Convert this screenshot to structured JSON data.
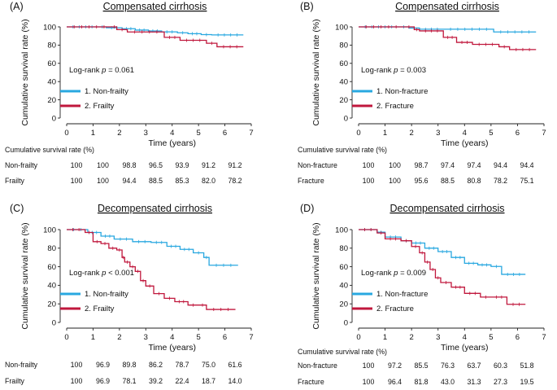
{
  "colors": {
    "blue": "#29a8e0",
    "red": "#c0173c"
  },
  "chart_data": [
    {
      "type": "line",
      "letter": "(A)",
      "title": "Compensated cirrhosis",
      "ylabel": "Cumulative survival rate (%)",
      "xlabel": "Time (years)",
      "xlim": [
        0,
        7
      ],
      "ylim": [
        0,
        100
      ],
      "xticks": [
        "0",
        "1",
        "2",
        "3",
        "4",
        "5",
        "6",
        "7"
      ],
      "yticks": [
        "0",
        "20",
        "40",
        "60",
        "80",
        "100"
      ],
      "logrank_prefix": "Log-rank ",
      "logrank_p": "p",
      "logrank_value": " = 0.061",
      "legend": [
        "1. Non-frailty",
        "2. Frailty"
      ],
      "series": [
        {
          "name": "1. Non-frailty",
          "color": "#29a8e0",
          "x": [
            0,
            1.2,
            1.5,
            2.1,
            2.6,
            3.1,
            3.6,
            4.2,
            4.6,
            5.1,
            5.5,
            6.7
          ],
          "y": [
            100,
            100,
            99,
            98,
            96.5,
            95.5,
            94.5,
            93.5,
            92.5,
            91.5,
            91.2,
            91.2
          ]
        },
        {
          "name": "2. Frailty",
          "color": "#c0173c",
          "x": [
            0,
            1.7,
            1.9,
            2.3,
            3.7,
            4.3,
            5.3,
            5.7,
            6.7
          ],
          "y": [
            100,
            100,
            97,
            94.4,
            88.5,
            85.3,
            82,
            78.2,
            78.2
          ]
        }
      ],
      "table": {
        "header": "Cumulative survival rate (%)",
        "rows": [
          {
            "label": "Non-frailty",
            "values": [
              "100",
              "100",
              "98.8",
              "96.5",
              "93.9",
              "91.2",
              "91.2"
            ]
          },
          {
            "label": "Frailty",
            "values": [
              "100",
              "100",
              "94.4",
              "88.5",
              "85.3",
              "82.0",
              "78.2"
            ]
          }
        ]
      }
    },
    {
      "type": "line",
      "letter": "(B)",
      "title": "Compensated cirrhosis",
      "ylabel": "Cumulative survival rate (%)",
      "xlabel": "Time (years)",
      "xlim": [
        0,
        7
      ],
      "ylim": [
        0,
        100
      ],
      "xticks": [
        "0",
        "1",
        "2",
        "3",
        "4",
        "5",
        "6",
        "7"
      ],
      "yticks": [
        "0",
        "20",
        "40",
        "60",
        "80",
        "100"
      ],
      "logrank_prefix": "Log-rank ",
      "logrank_p": "p",
      "logrank_value": " = 0.003",
      "legend": [
        "1. Non-fracture",
        "2. Fracture"
      ],
      "series": [
        {
          "name": "1. Non-fracture",
          "color": "#29a8e0",
          "x": [
            0,
            1.5,
            1.9,
            2.3,
            3.2,
            5.1,
            6.7
          ],
          "y": [
            100,
            100,
            98.7,
            97.4,
            97.4,
            94.4,
            94.4
          ]
        },
        {
          "name": "2. Fracture",
          "color": "#c0173c",
          "x": [
            0,
            1.7,
            2.1,
            2.3,
            3.2,
            3.7,
            4.3,
            5.3,
            5.7,
            6.7
          ],
          "y": [
            100,
            100,
            97,
            95.6,
            88.5,
            83,
            80.8,
            78.2,
            75.1,
            75.1
          ]
        }
      ],
      "table": {
        "header": "Cumulative survival rate (%)",
        "rows": [
          {
            "label": "Non-fracture",
            "values": [
              "100",
              "100",
              "98.7",
              "97.4",
              "97.4",
              "94.4",
              "94.4"
            ]
          },
          {
            "label": "Fracture",
            "values": [
              "100",
              "100",
              "95.6",
              "88.5",
              "80.8",
              "78.2",
              "75.1"
            ]
          }
        ]
      }
    },
    {
      "type": "line",
      "letter": "(C)",
      "title": "Decompensated cirrhosis",
      "ylabel": "Cumulative survival rate (%)",
      "xlabel": "Time (years)",
      "xlim": [
        0,
        7
      ],
      "ylim": [
        0,
        100
      ],
      "xticks": [
        "0",
        "1",
        "2",
        "3",
        "4",
        "5",
        "6",
        "7"
      ],
      "yticks": [
        "0",
        "20",
        "40",
        "60",
        "80",
        "100"
      ],
      "logrank_prefix": "Log-rank ",
      "logrank_p": "p",
      "logrank_value": " < 0.001",
      "legend": [
        "1. Non-frailty",
        "2. Frailty"
      ],
      "series": [
        {
          "name": "1. Non-frailty",
          "color": "#29a8e0",
          "x": [
            0,
            0.8,
            1.3,
            1.8,
            2.5,
            3.2,
            3.8,
            4.3,
            4.8,
            5.2,
            5.4,
            6.5
          ],
          "y": [
            100,
            96.9,
            93,
            89.8,
            87,
            86.2,
            82,
            78.7,
            75,
            70,
            61.6,
            61.6
          ]
        },
        {
          "name": "2. Frailty",
          "color": "#c0173c",
          "x": [
            0,
            0.7,
            1.0,
            1.3,
            1.6,
            1.9,
            2.1,
            2.2,
            2.4,
            2.6,
            2.8,
            3.0,
            3.3,
            3.7,
            4.1,
            4.6,
            5.0,
            5.3,
            6.4
          ],
          "y": [
            100,
            96.9,
            87,
            85,
            80,
            78.1,
            70,
            65,
            60,
            55,
            45,
            39.2,
            31,
            26,
            22.4,
            18.7,
            18.7,
            14,
            14
          ]
        }
      ],
      "table": {
        "header": "",
        "rows": [
          {
            "label": "Non-frailty",
            "values": [
              "100",
              "96.9",
              "89.8",
              "86.2",
              "78.7",
              "75.0",
              "61.6"
            ]
          },
          {
            "label": "Frailty",
            "values": [
              "100",
              "96.9",
              "78.1",
              "39.2",
              "22.4",
              "18.7",
              "14.0"
            ]
          }
        ]
      }
    },
    {
      "type": "line",
      "letter": "(D)",
      "title": "Decompensated cirrhosis",
      "ylabel": "Cumulative survival rate (%)",
      "xlabel": "Time (years)",
      "xlim": [
        0,
        7
      ],
      "ylim": [
        0,
        100
      ],
      "xticks": [
        "0",
        "1",
        "2",
        "3",
        "4",
        "5",
        "6",
        "7"
      ],
      "yticks": [
        "0",
        "20",
        "40",
        "60",
        "80",
        "100"
      ],
      "logrank_prefix": "Log-rank ",
      "logrank_p": "p",
      "logrank_value": " = 0.009",
      "legend": [
        "1. Non-fracture",
        "2. Fracture"
      ],
      "series": [
        {
          "name": "1. Non-fracture",
          "color": "#29a8e0",
          "x": [
            0,
            0.7,
            1.0,
            1.6,
            2.0,
            2.5,
            3.0,
            3.5,
            4.0,
            4.5,
            5.0,
            5.4,
            6.3
          ],
          "y": [
            100,
            97.2,
            92,
            88,
            85.5,
            80,
            76.3,
            70,
            63.7,
            62,
            60.3,
            51.8,
            51.8
          ]
        },
        {
          "name": "2. Fracture",
          "color": "#c0173c",
          "x": [
            0,
            0.7,
            1.0,
            1.6,
            2.0,
            2.3,
            2.5,
            2.7,
            2.9,
            3.1,
            3.5,
            4.0,
            4.6,
            5.0,
            5.6,
            6.3
          ],
          "y": [
            100,
            96.4,
            90,
            88,
            81.8,
            75,
            65,
            57,
            48,
            43,
            38,
            31.3,
            27.3,
            27.3,
            19.5,
            19.5
          ]
        }
      ],
      "table": {
        "header": "Cumulative survival rate (%)",
        "rows": [
          {
            "label": "Non-fracture",
            "values": [
              "100",
              "97.2",
              "85.5",
              "76.3",
              "63.7",
              "60.3",
              "51.8"
            ]
          },
          {
            "label": "Fracture",
            "values": [
              "100",
              "96.4",
              "81.8",
              "43.0",
              "31.3",
              "27.3",
              "19.5"
            ]
          }
        ]
      }
    }
  ]
}
